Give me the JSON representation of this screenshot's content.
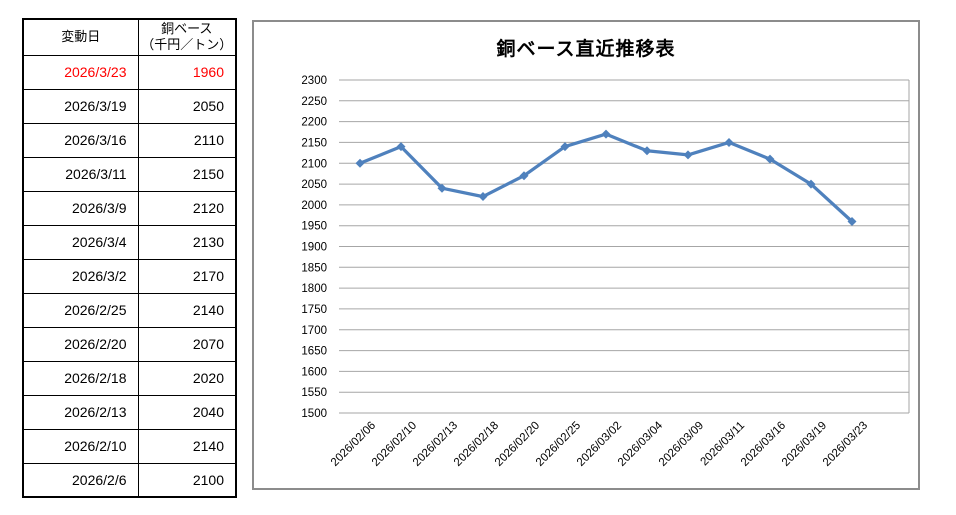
{
  "table": {
    "header": {
      "date_label": "変動日",
      "value_label_line1": "銅ベース",
      "value_label_line2": "（千円／トン）"
    },
    "rows": [
      {
        "date": "2026/3/23",
        "value": "1960",
        "highlight": true
      },
      {
        "date": "2026/3/19",
        "value": "2050",
        "highlight": false
      },
      {
        "date": "2026/3/16",
        "value": "2110",
        "highlight": false
      },
      {
        "date": "2026/3/11",
        "value": "2150",
        "highlight": false
      },
      {
        "date": "2026/3/9",
        "value": "2120",
        "highlight": false
      },
      {
        "date": "2026/3/4",
        "value": "2130",
        "highlight": false
      },
      {
        "date": "2026/3/2",
        "value": "2170",
        "highlight": false
      },
      {
        "date": "2026/2/25",
        "value": "2140",
        "highlight": false
      },
      {
        "date": "2026/2/20",
        "value": "2070",
        "highlight": false
      },
      {
        "date": "2026/2/18",
        "value": "2020",
        "highlight": false
      },
      {
        "date": "2026/2/13",
        "value": "2040",
        "highlight": false
      },
      {
        "date": "2026/2/10",
        "value": "2140",
        "highlight": false
      },
      {
        "date": "2026/2/6",
        "value": "2100",
        "highlight": false
      }
    ]
  },
  "chart_data": {
    "type": "line",
    "title": "銅ベース直近推移表",
    "x": [
      "2026/02/06",
      "2026/02/10",
      "2026/02/13",
      "2026/02/18",
      "2026/02/20",
      "2026/02/25",
      "2026/03/02",
      "2026/03/04",
      "2026/03/09",
      "2026/03/11",
      "2026/03/16",
      "2026/03/19",
      "2026/03/23"
    ],
    "values": [
      2100,
      2140,
      2040,
      2020,
      2070,
      2140,
      2170,
      2130,
      2120,
      2150,
      2110,
      2050,
      1960
    ],
    "xlabel": "",
    "ylabel": "",
    "ylim": [
      1500,
      2300
    ],
    "ytick_step": 50,
    "grid": true,
    "legend": "none",
    "marker": "diamond",
    "line_color": "#4F81BD",
    "gridline_color": "#A6A6A6",
    "tick_label_color": "#000000"
  },
  "colors": {
    "highlight_text": "#FF0000",
    "table_border": "#000000",
    "chart_border": "#8C8C8C",
    "background": "#FFFFFF"
  }
}
